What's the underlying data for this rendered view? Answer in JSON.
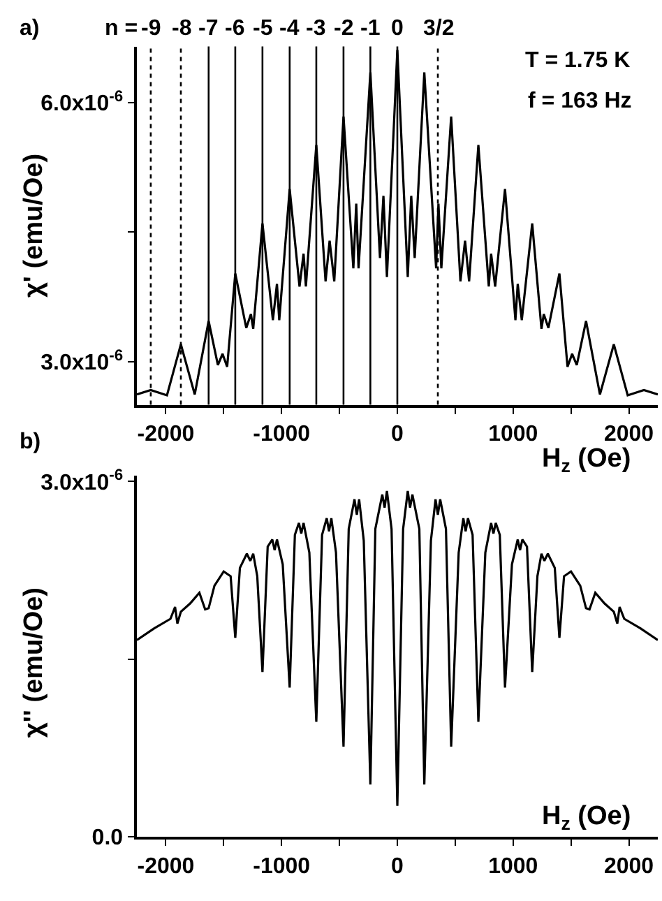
{
  "chart_data": [
    {
      "type": "line",
      "xlabel": "H$_{z}$ (Oe)",
      "ylabel": "χ' (emu/Oe)",
      "annotations": [
        "a)",
        "n =",
        "T = 1.75 K",
        "f = 163 Hz",
        {
          "text": "-9",
          "x": -2130,
          "y": 6.65e-06
        },
        {
          "text": "-8",
          "x": -1870,
          "y": 6.65e-06
        },
        {
          "text": "-7",
          "x": -1630,
          "y": 6.65e-06
        },
        {
          "text": "-6",
          "x": -1400,
          "y": 6.65e-06
        },
        {
          "text": "-5",
          "x": -1165,
          "y": 6.65e-06
        },
        {
          "text": "-4",
          "x": -930,
          "y": 6.65e-06
        },
        {
          "text": "-3",
          "x": -700,
          "y": 6.65e-06
        },
        {
          "text": "-2",
          "x": -465,
          "y": 6.65e-06
        },
        {
          "text": "-1",
          "x": -233,
          "y": 6.65e-06
        },
        {
          "text": "0",
          "x": 0,
          "y": 6.65e-06
        },
        {
          "text": "3/2",
          "x": 350,
          "y": 6.65e-06
        }
      ],
      "x": [
        -2250,
        -2130,
        -1990,
        -1870,
        -1750,
        -1630,
        -1550,
        -1510,
        -1470,
        -1400,
        -1305,
        -1265,
        -1245,
        -1165,
        -1075,
        -1040,
        -1020,
        -930,
        -845,
        -810,
        -790,
        -700,
        -620,
        -585,
        -545,
        -465,
        -380,
        -355,
        -335,
        -233,
        -150,
        -120,
        -90,
        0,
        90,
        120,
        150,
        233,
        335,
        355,
        380,
        465,
        545,
        585,
        620,
        700,
        790,
        810,
        845,
        930,
        1020,
        1040,
        1075,
        1165,
        1245,
        1265,
        1305,
        1400,
        1470,
        1510,
        1550,
        1630,
        1750,
        1870,
        1990,
        2130,
        2250
      ],
      "series": [
        {
          "color": "#000000",
          "values": [
            2.62e-06,
            2.67e-06,
            2.61e-06,
            3.2e-06,
            2.62e-06,
            3.47e-06,
            2.96e-06,
            3.09e-06,
            2.94e-06,
            4.02e-06,
            3.39e-06,
            3.55e-06,
            3.38e-06,
            4.6e-06,
            3.48e-06,
            3.9e-06,
            3.48e-06,
            5e-06,
            3.87e-06,
            4.25e-06,
            3.87e-06,
            5.51e-06,
            3.93e-06,
            4.4e-06,
            3.93e-06,
            5.84e-06,
            4.08e-06,
            4.83e-06,
            4.08e-06,
            6.35e-06,
            4.2e-06,
            4.92e-06,
            3.98e-06,
            6.61e-06,
            3.98e-06,
            4.92e-06,
            4.2e-06,
            6.35e-06,
            4.08e-06,
            4.83e-06,
            4.08e-06,
            5.84e-06,
            3.93e-06,
            4.4e-06,
            3.93e-06,
            5.51e-06,
            3.87e-06,
            4.25e-06,
            3.87e-06,
            5e-06,
            3.48e-06,
            3.9e-06,
            3.48e-06,
            4.6e-06,
            3.38e-06,
            3.55e-06,
            3.39e-06,
            4.02e-06,
            2.94e-06,
            3.09e-06,
            2.96e-06,
            3.47e-06,
            2.62e-06,
            3.2e-06,
            2.61e-06,
            2.67e-06,
            2.62e-06
          ]
        }
      ],
      "xlim": [
        -2250,
        2250
      ],
      "xticks": [
        -2000,
        {
          "value": -1500,
          "label": null
        },
        -1000,
        {
          "value": -500,
          "label": null
        },
        0,
        {
          "value": 500,
          "label": null
        },
        1000,
        {
          "value": 1500,
          "label": null
        },
        2000
      ],
      "ylim": [
        2.5e-06,
        6.65e-06
      ],
      "yticks": [
        {
          "value": 3e-06,
          "label": "3.0x10$^{-6}$"
        },
        {
          "value": 4.5e-06,
          "label": null
        },
        {
          "value": 6e-06,
          "label": "6.0x10$^{-6}$"
        }
      ],
      "ref_lines": [
        {
          "axis": "x",
          "value": -2130,
          "line_style": "dotted"
        },
        {
          "axis": "x",
          "value": -1870,
          "line_style": "dotted"
        },
        {
          "axis": "x",
          "value": -1630,
          "line_style": "solid"
        },
        {
          "axis": "x",
          "value": -1400,
          "line_style": "solid"
        },
        {
          "axis": "x",
          "value": -1165,
          "line_style": "solid"
        },
        {
          "axis": "x",
          "value": -930,
          "line_style": "solid"
        },
        {
          "axis": "x",
          "value": -700,
          "line_style": "solid"
        },
        {
          "axis": "x",
          "value": -465,
          "line_style": "solid"
        },
        {
          "axis": "x",
          "value": -233,
          "line_style": "solid"
        },
        {
          "axis": "x",
          "value": 0,
          "line_style": "solid"
        },
        {
          "axis": "x",
          "value": 350,
          "line_style": "dotted"
        }
      ]
    },
    {
      "type": "line",
      "xlabel": "H$_{z}$ (Oe)",
      "ylabel": "χ'' (emu/Oe)",
      "annotations": [
        "b)"
      ],
      "x": [
        -2250,
        -2100,
        -1960,
        -1920,
        -1900,
        -1870,
        -1790,
        -1710,
        -1660,
        -1630,
        -1580,
        -1500,
        -1440,
        -1400,
        -1360,
        -1300,
        -1270,
        -1245,
        -1210,
        -1165,
        -1120,
        -1080,
        -1060,
        -1040,
        -990,
        -930,
        -885,
        -850,
        -830,
        -810,
        -760,
        -700,
        -650,
        -610,
        -590,
        -570,
        -530,
        -465,
        -420,
        -370,
        -350,
        -330,
        -290,
        -233,
        -190,
        -130,
        -110,
        -90,
        -50,
        0,
        50,
        90,
        110,
        130,
        190,
        233,
        290,
        330,
        350,
        370,
        420,
        465,
        530,
        570,
        590,
        610,
        650,
        700,
        760,
        810,
        830,
        850,
        885,
        930,
        990,
        1040,
        1060,
        1080,
        1120,
        1165,
        1210,
        1245,
        1270,
        1300,
        1360,
        1400,
        1440,
        1500,
        1580,
        1630,
        1660,
        1710,
        1790,
        1870,
        1900,
        1920,
        1960,
        2100,
        2250
      ],
      "series": [
        {
          "color": "#000000",
          "values": [
            1.66e-06,
            1.76e-06,
            1.84e-06,
            1.94e-06,
            1.8e-06,
            1.9e-06,
            1.97e-06,
            2.06e-06,
            1.92e-06,
            1.93e-06,
            2.12e-06,
            2.24e-06,
            2.2e-06,
            1.68e-06,
            2.27e-06,
            2.39e-06,
            2.33e-06,
            2.39e-06,
            2.2e-06,
            1.39e-06,
            2.45e-06,
            2.51e-06,
            2.42e-06,
            2.51e-06,
            2.3e-06,
            1.26e-06,
            2.55e-06,
            2.65e-06,
            2.56e-06,
            2.65e-06,
            2.4e-06,
            9.7e-07,
            2.55e-06,
            2.69e-06,
            2.58e-06,
            2.69e-06,
            2.4e-06,
            7.6e-07,
            2.6e-06,
            2.85e-06,
            2.72e-06,
            2.85e-06,
            2.5e-06,
            4.4e-07,
            2.6e-06,
            2.89e-06,
            2.78e-06,
            2.92e-06,
            2.6e-06,
            2.6e-07,
            2.6e-06,
            2.92e-06,
            2.78e-06,
            2.89e-06,
            2.6e-06,
            4.4e-07,
            2.5e-06,
            2.85e-06,
            2.72e-06,
            2.85e-06,
            2.6e-06,
            7.6e-07,
            2.4e-06,
            2.69e-06,
            2.58e-06,
            2.69e-06,
            2.55e-06,
            9.7e-07,
            2.4e-06,
            2.65e-06,
            2.56e-06,
            2.65e-06,
            2.55e-06,
            1.26e-06,
            2.3e-06,
            2.51e-06,
            2.42e-06,
            2.51e-06,
            2.45e-06,
            1.39e-06,
            2.2e-06,
            2.39e-06,
            2.33e-06,
            2.39e-06,
            2.27e-06,
            1.68e-06,
            2.2e-06,
            2.24e-06,
            2.12e-06,
            1.93e-06,
            1.92e-06,
            2.06e-06,
            1.97e-06,
            1.9e-06,
            1.8e-06,
            1.94e-06,
            1.84e-06,
            1.76e-06,
            1.66e-06
          ]
        }
      ],
      "xlim": [
        -2250,
        2250
      ],
      "xticks": [
        -2000,
        {
          "value": -1500,
          "label": null
        },
        -1000,
        {
          "value": -500,
          "label": null
        },
        0,
        {
          "value": 500,
          "label": null
        },
        1000,
        {
          "value": 1500,
          "label": null
        },
        2000
      ],
      "ylim": [
        0,
        3.05e-06
      ],
      "yticks": [
        {
          "value": 0,
          "label": "0.0"
        },
        {
          "value": 1.5e-06,
          "label": null
        },
        {
          "value": 3e-06,
          "label": "3.0x10$^{-6}$"
        }
      ]
    }
  ]
}
